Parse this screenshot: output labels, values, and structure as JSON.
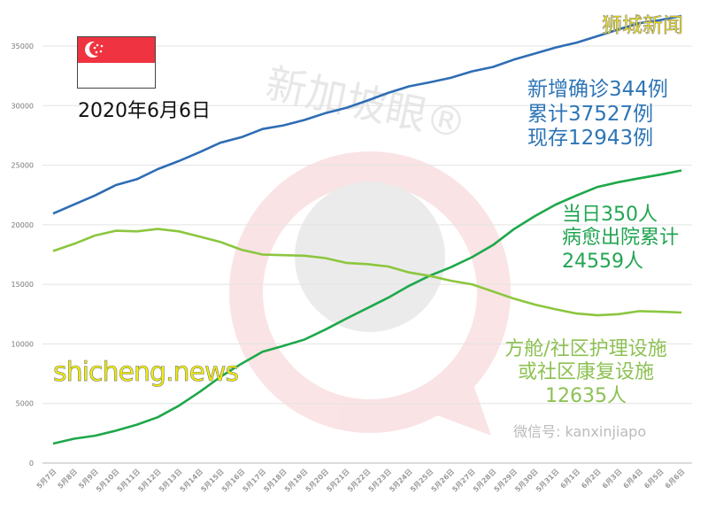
{
  "chart_data": {
    "type": "line",
    "title": "",
    "xlabel": "",
    "ylabel": "",
    "ylim": [
      0,
      35000
    ],
    "yticks": [
      0,
      5000,
      10000,
      15000,
      20000,
      25000,
      30000,
      35000
    ],
    "grid": true,
    "legend": "none",
    "categories": [
      "5月7日",
      "5月8日",
      "5月9日",
      "5月10日",
      "5月11日",
      "5月12日",
      "5月13日",
      "5月14日",
      "5月15日",
      "5月16日",
      "5月17日",
      "5月18日",
      "5月19日",
      "5月20日",
      "5月21日",
      "5月22日",
      "5月23日",
      "5月24日",
      "5月25日",
      "5月26日",
      "5月27日",
      "5月28日",
      "5月29日",
      "5月30日",
      "5月31日",
      "6月1日",
      "6月2日",
      "6月3日",
      "6月4日",
      "6月5日",
      "6月6日"
    ],
    "series": [
      {
        "color": "#2e6db4",
        "values": [
          20939,
          21707,
          22460,
          23336,
          23822,
          24671,
          25346,
          26098,
          26891,
          27356,
          28038,
          28343,
          28794,
          29364,
          29812,
          30426,
          31068,
          31616,
          31960,
          32343,
          32876,
          33249,
          33860,
          34366,
          34884,
          35292,
          35836,
          36405,
          36922,
          37183,
          37527
        ]
      },
      {
        "color": "#1ea84a",
        "values": [
          1634,
          2040,
          2296,
          2721,
          3225,
          3851,
          4809,
          5973,
          7248,
          8342,
          9340,
          9835,
          10365,
          11207,
          12117,
          12995,
          13882,
          14876,
          15738,
          16444,
          17276,
          18294,
          19631,
          20727,
          21699,
          22466,
          23175,
          23582,
          23904,
          24209,
          24559
        ]
      },
      {
        "color": "#8cc63f",
        "values": [
          17800,
          18400,
          19100,
          19500,
          19450,
          19650,
          19450,
          19000,
          18550,
          17900,
          17500,
          17450,
          17400,
          17200,
          16800,
          16700,
          16500,
          16000,
          15700,
          15300,
          15000,
          14400,
          13800,
          13300,
          12900,
          12550,
          12400,
          12500,
          12750,
          12700,
          12635
        ]
      }
    ]
  },
  "header": {
    "date": "2020年6月6日",
    "flag": "singapore-flag"
  },
  "annotations": {
    "confirmed": [
      "新增确诊344例",
      "累计37527例",
      "现存12943例"
    ],
    "discharged": [
      "当日350人",
      "病愈出院累计",
      "24559人"
    ],
    "community": [
      "方舱/社区护理设施",
      "或社区康复设施",
      "12635人"
    ]
  },
  "colors": {
    "confirmed_text": "#2e75b6",
    "discharged_text": "#22a552",
    "community_text": "#8dc153"
  },
  "watermarks": {
    "site": "shicheng.news",
    "top_right": "狮城新闻",
    "wechat": "微信号: kanxinjiapo",
    "center": "新加坡眼®"
  }
}
